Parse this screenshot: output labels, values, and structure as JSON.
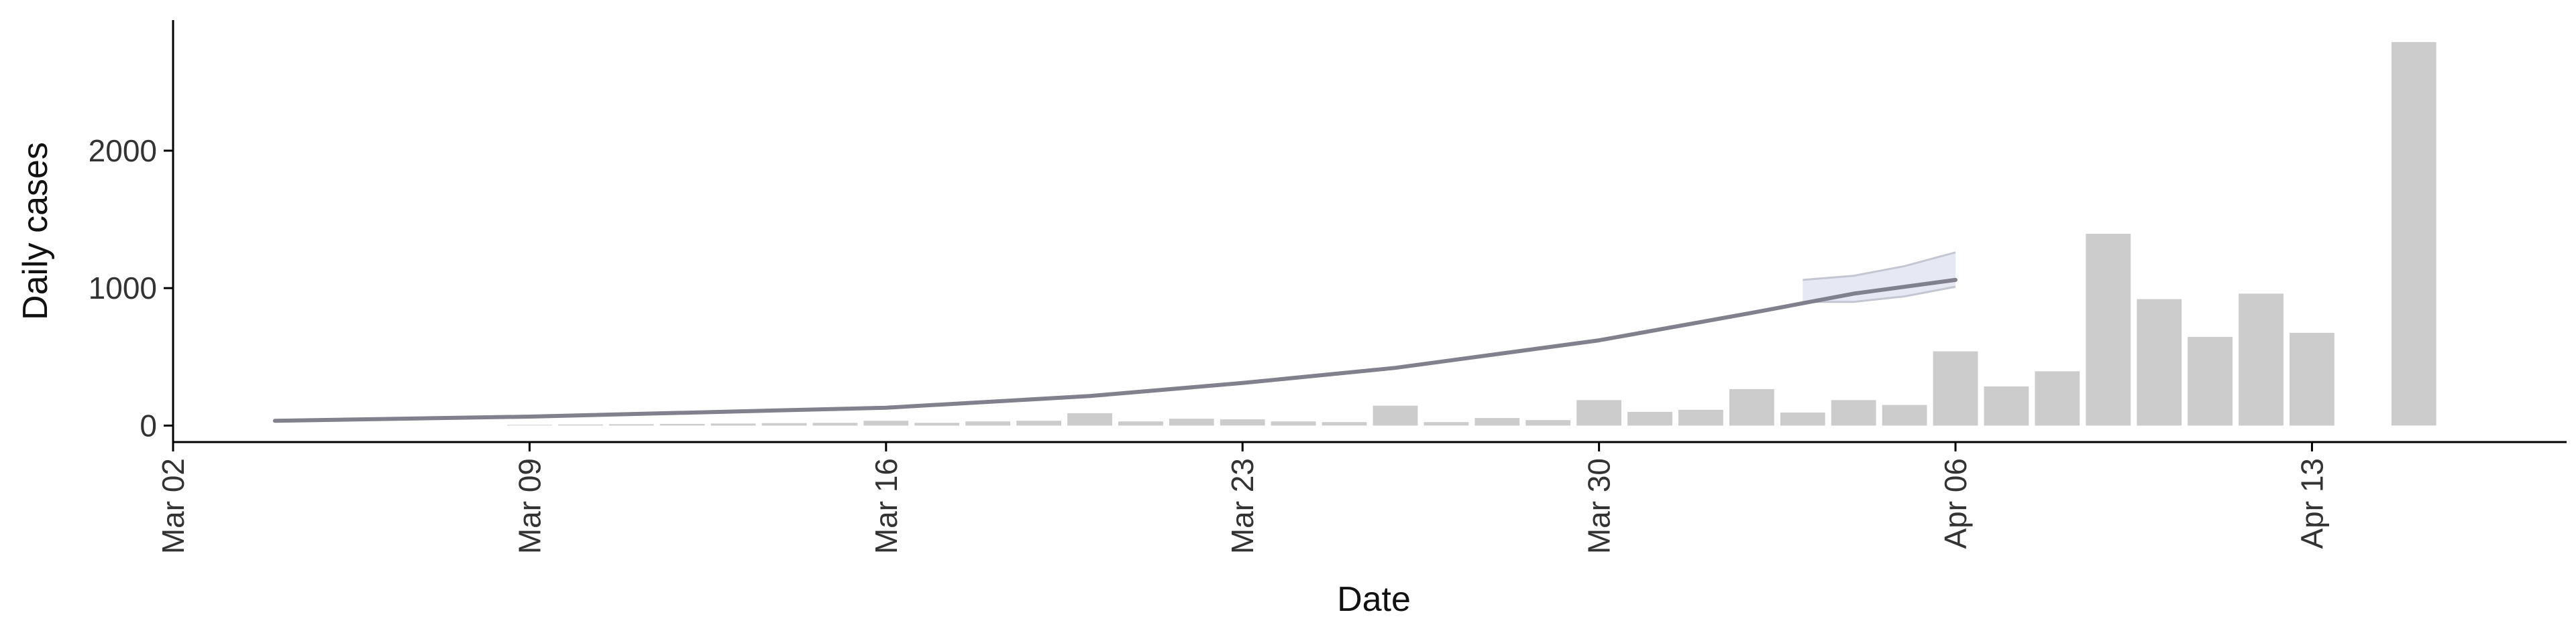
{
  "chart_data": {
    "type": "bar",
    "title": "",
    "xlabel": "Date",
    "ylabel": "Daily cases",
    "ylim": [
      -120,
      2950
    ],
    "xlim": [
      "2020-03-02",
      "2020-04-18"
    ],
    "grid": false,
    "legend": "none",
    "x_ticks": [
      {
        "date": "2020-03-02",
        "label": "Mar 02"
      },
      {
        "date": "2020-03-09",
        "label": "Mar 09"
      },
      {
        "date": "2020-03-16",
        "label": "Mar 16"
      },
      {
        "date": "2020-03-23",
        "label": "Mar 23"
      },
      {
        "date": "2020-03-30",
        "label": "Mar 30"
      },
      {
        "date": "2020-04-06",
        "label": "Apr 06"
      },
      {
        "date": "2020-04-13",
        "label": "Apr 13"
      }
    ],
    "y_ticks": [
      0,
      1000,
      2000
    ],
    "bars": {
      "color": "#cccccc",
      "dates": [
        "2020-03-09",
        "2020-03-10",
        "2020-03-11",
        "2020-03-12",
        "2020-03-13",
        "2020-03-14",
        "2020-03-15",
        "2020-03-16",
        "2020-03-17",
        "2020-03-18",
        "2020-03-19",
        "2020-03-20",
        "2020-03-21",
        "2020-03-22",
        "2020-03-23",
        "2020-03-24",
        "2020-03-25",
        "2020-03-26",
        "2020-03-27",
        "2020-03-28",
        "2020-03-29",
        "2020-03-30",
        "2020-03-31",
        "2020-04-01",
        "2020-04-02",
        "2020-04-03",
        "2020-04-04",
        "2020-04-05",
        "2020-04-06",
        "2020-04-07",
        "2020-04-08",
        "2020-04-09",
        "2020-04-10",
        "2020-04-11",
        "2020-04-12",
        "2020-04-13",
        "2020-04-15"
      ],
      "values": [
        5,
        8,
        10,
        12,
        15,
        18,
        20,
        35,
        20,
        30,
        35,
        90,
        30,
        50,
        45,
        30,
        25,
        145,
        25,
        55,
        40,
        185,
        100,
        115,
        265,
        95,
        185,
        150,
        540,
        285,
        395,
        1395,
        920,
        645,
        960,
        675,
        2790
      ]
    },
    "series": [
      {
        "color": "#7a7a88",
        "dates": [
          "2020-03-04",
          "2020-03-09",
          "2020-03-16",
          "2020-03-20",
          "2020-03-23",
          "2020-03-26",
          "2020-03-30",
          "2020-04-02",
          "2020-04-04",
          "2020-04-06"
        ],
        "values": [
          35,
          65,
          130,
          215,
          310,
          420,
          620,
          820,
          960,
          1060
        ]
      }
    ],
    "band": {
      "fill": "#e6e9f4",
      "edge": "#c4c7d2",
      "dates": [
        "2020-04-03",
        "2020-04-04",
        "2020-04-05",
        "2020-04-06"
      ],
      "upper": [
        1060,
        1090,
        1160,
        1260
      ],
      "lower": [
        900,
        900,
        940,
        1010
      ]
    }
  }
}
